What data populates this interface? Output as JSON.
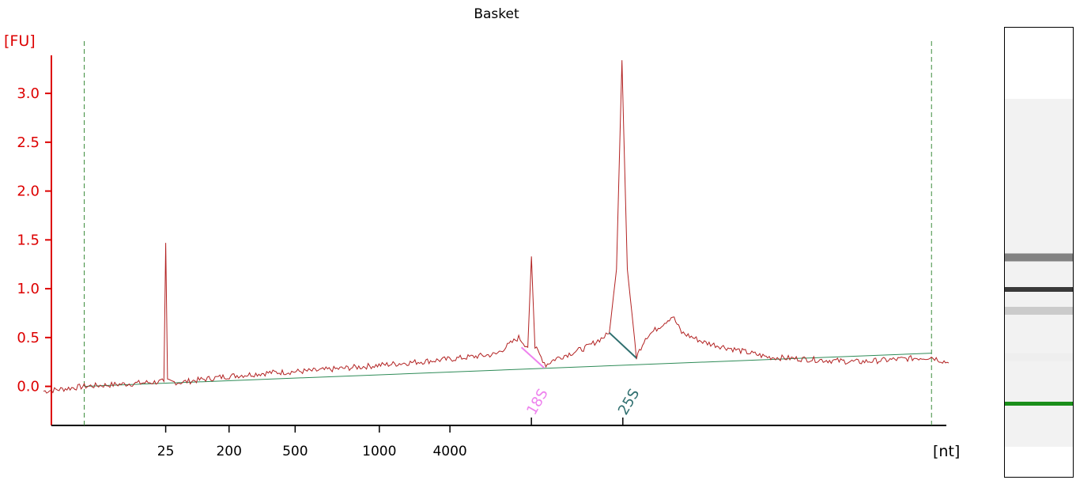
{
  "chart_data": {
    "type": "line",
    "title": "Basket",
    "ylabel": "[FU]",
    "xlabel": "[nt]",
    "ylim": [
      -0.4,
      3.6
    ],
    "yticks": [
      0.0,
      0.5,
      1.0,
      1.5,
      2.0,
      2.5,
      3.0
    ],
    "ytick_labels": [
      "0.0",
      "0.5",
      "1.0",
      "1.5",
      "2.0",
      "2.5",
      "3.0"
    ],
    "xlim": [
      0,
      100
    ],
    "xticks": [
      {
        "label": "25",
        "pos": 13.5
      },
      {
        "label": "200",
        "pos": 20.5
      },
      {
        "label": "500",
        "pos": 27.8
      },
      {
        "label": "1000",
        "pos": 37.1
      },
      {
        "label": "4000",
        "pos": 44.9
      }
    ],
    "marker_lines": [
      4.5,
      98.1
    ],
    "peaks": [
      {
        "label": "18S",
        "x": 53.9,
        "height": 1.33
      },
      {
        "label": "25S",
        "x": 63.9,
        "height": 3.34
      }
    ],
    "series": [
      {
        "x": [
          0,
          4.5,
          10,
          13.3,
          13.5,
          13.7,
          15,
          20,
          25,
          30,
          35,
          40,
          45,
          50,
          52.5,
          53.5,
          53.9,
          54.3,
          55.5,
          56.5,
          60,
          62.5,
          63.3,
          63.9,
          64.5,
          65.5,
          66.5,
          69.5,
          70.5,
          73,
          80,
          90,
          98.1,
          100
        ],
        "y": [
          -0.05,
          0.0,
          0.03,
          0.05,
          1.47,
          0.05,
          0.04,
          0.1,
          0.14,
          0.16,
          0.2,
          0.24,
          0.28,
          0.33,
          0.5,
          0.4,
          1.33,
          0.4,
          0.22,
          0.28,
          0.4,
          0.54,
          1.2,
          3.34,
          1.2,
          0.3,
          0.5,
          0.72,
          0.55,
          0.45,
          0.3,
          0.25,
          0.3,
          0.24
        ]
      }
    ],
    "baseline": {
      "x": [
        4.5,
        98.1
      ],
      "y": [
        0.0,
        0.34
      ]
    },
    "colors": {
      "trace": "#b22222",
      "baseline": "#2e8b57",
      "axis": "#dd0000",
      "marker": "#3c8c3c",
      "peak_18S": "#ee82ee",
      "peak_25S": "#2f6f6f",
      "gel_lower_marker": "#1a8f1a"
    },
    "grid": false,
    "gel_lane": {
      "bands": [
        {
          "level": 0.0,
          "intensity": 0.35
        },
        {
          "level": 0.13,
          "intensity": 0.08
        },
        {
          "level": 0.26,
          "intensity": 0.25
        },
        {
          "level": 0.32,
          "intensity": 0.95
        },
        {
          "level": 0.41,
          "intensity": 0.6
        },
        {
          "level": 0.78,
          "intensity": 1.0
        }
      ]
    }
  }
}
